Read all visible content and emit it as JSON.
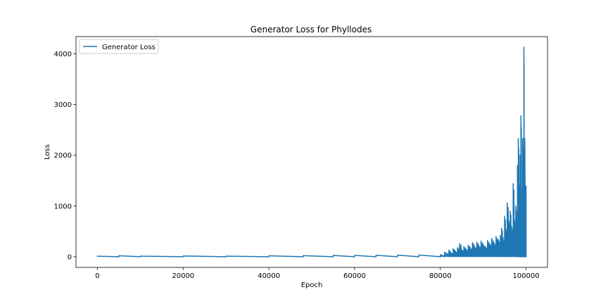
{
  "chart_data": {
    "type": "line",
    "title": "Generator Loss for Phyllodes",
    "xlabel": "Epoch",
    "ylabel": "Loss",
    "xlim": [
      -5000,
      105000
    ],
    "ylim": [
      -210,
      4340
    ],
    "xticks": [
      0,
      20000,
      40000,
      60000,
      80000,
      100000
    ],
    "yticks": [
      0,
      1000,
      2000,
      3000,
      4000
    ],
    "xtick_labels": [
      "0",
      "20000",
      "40000",
      "60000",
      "80000",
      "100000"
    ],
    "ytick_labels": [
      "0",
      "1000",
      "2000",
      "3000",
      "4000"
    ],
    "grid": false,
    "legend_position": "upper-left",
    "series": [
      {
        "name": "Generator Loss",
        "color": "#1f77b4",
        "x": [
          0,
          5000,
          10000,
          20000,
          30000,
          40000,
          48000,
          55000,
          60000,
          65000,
          70000,
          75000,
          80000,
          81000,
          82000,
          82500,
          83000,
          83500,
          84000,
          84500,
          85000,
          85500,
          86000,
          86500,
          87000,
          87500,
          88000,
          88500,
          89000,
          89500,
          90000,
          90500,
          91000,
          91500,
          92000,
          92500,
          93000,
          93500,
          94000,
          94300,
          94600,
          95000,
          95300,
          95600,
          96000,
          96300,
          96600,
          97000,
          97300,
          97600,
          98000,
          98200,
          98400,
          98600,
          98800,
          99000,
          99200,
          99400,
          99500,
          99600,
          99700,
          99800,
          99900,
          100000
        ],
        "y_min": [
          0,
          0,
          0,
          0,
          0,
          0,
          0,
          0,
          0,
          0,
          0,
          0,
          0,
          0,
          0,
          0,
          0,
          0,
          0,
          0,
          0,
          0,
          0,
          0,
          0,
          0,
          0,
          0,
          0,
          0,
          0,
          0,
          0,
          0,
          0,
          0,
          0,
          0,
          0,
          0,
          0,
          0,
          0,
          0,
          0,
          0,
          0,
          0,
          0,
          0,
          0,
          0,
          0,
          0,
          0,
          0,
          0,
          0,
          0,
          0,
          0,
          0,
          0,
          0
        ],
        "y_max": [
          10,
          20,
          12,
          15,
          12,
          18,
          22,
          25,
          28,
          30,
          32,
          35,
          40,
          90,
          130,
          80,
          160,
          110,
          180,
          260,
          140,
          200,
          150,
          230,
          180,
          280,
          200,
          290,
          220,
          310,
          240,
          200,
          320,
          260,
          360,
          280,
          400,
          340,
          420,
          560,
          380,
          800,
          540,
          1060,
          700,
          900,
          600,
          1440,
          720,
          1000,
          1800,
          2330,
          1400,
          2000,
          2780,
          1300,
          2330,
          1600,
          4130,
          2000,
          2330,
          900,
          1400,
          1400
        ]
      }
    ]
  }
}
